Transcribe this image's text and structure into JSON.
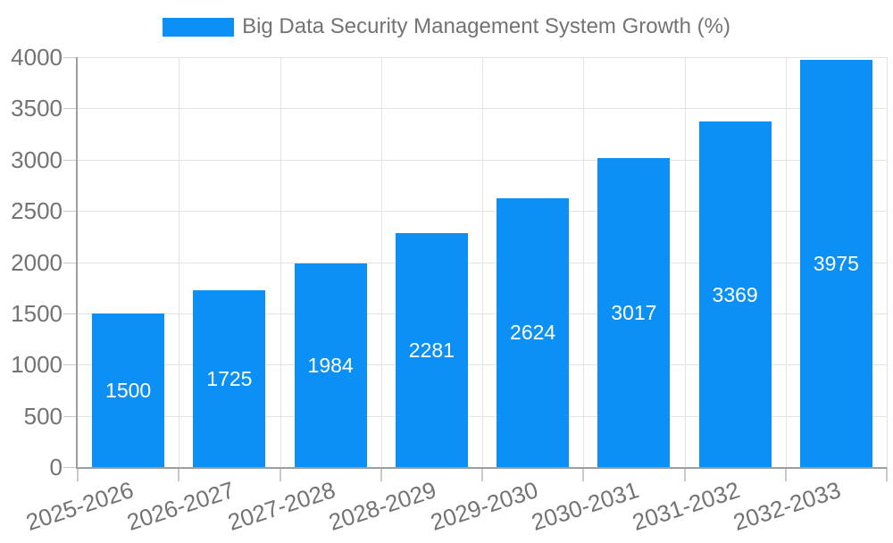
{
  "page": {
    "background": "#ffffff"
  },
  "legend": {
    "swatch": "bar-color",
    "position": "top-center"
  },
  "chart_data": {
    "type": "bar",
    "title": "Big Data Security Management System Growth (%)",
    "categories": [
      "2025-2026",
      "2026-2027",
      "2027-2028",
      "2028-2029",
      "2029-2030",
      "2030-2031",
      "2031-2032",
      "2032-2033"
    ],
    "values": [
      1500,
      1725,
      1984,
      2281,
      2624,
      3017,
      3369,
      3975
    ],
    "bar_value_labels": [
      "1500",
      "1725",
      "1984",
      "2281",
      "2624",
      "3017",
      "3369",
      "3975"
    ],
    "xlabel": "",
    "ylabel": "",
    "ylim": [
      0,
      4000
    ],
    "y_ticks": [
      0,
      500,
      1000,
      1500,
      2000,
      2500,
      3000,
      3500,
      4000
    ],
    "grid": true,
    "vertical_grid": true,
    "legend_position": "top",
    "x_label_rotation_deg": -18,
    "colors": {
      "bar": "#0d90f5",
      "grid": "#e3e3e3",
      "axis": "#9e9e9e",
      "tick": "#c9c9c9",
      "tick_text": "#737373",
      "legend_text": "#737373",
      "bar_label_text": "#ffffff",
      "background": "#ffffff"
    }
  }
}
